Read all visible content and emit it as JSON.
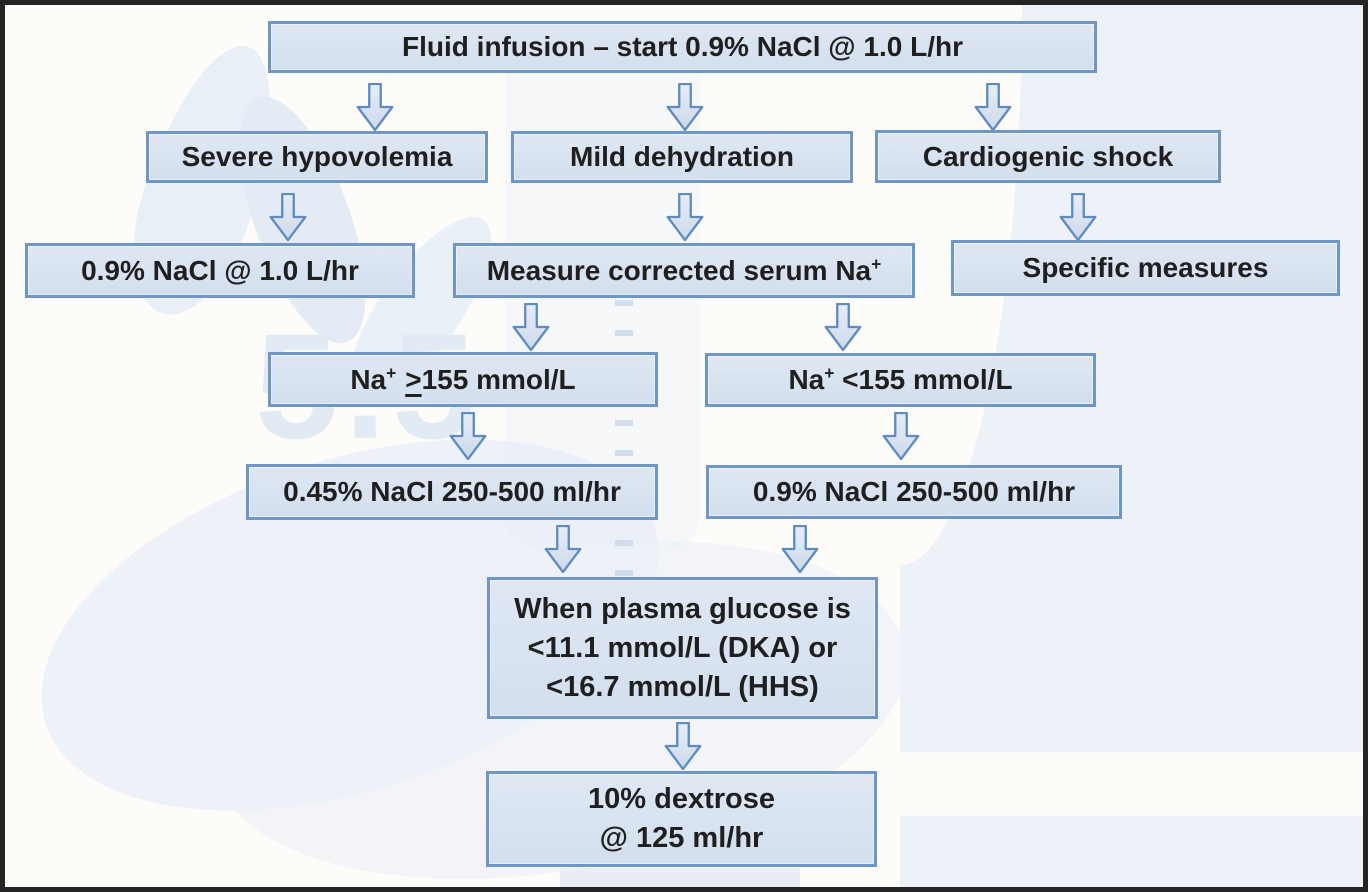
{
  "flowchart": {
    "boxes": {
      "fluid_infusion": {
        "label": "Fluid infusion – start 0.9% NaCl @ 1.0 L/hr"
      },
      "severe_hypovolemia": {
        "label": "Severe hypovolemia"
      },
      "mild_dehydration": {
        "label": "Mild dehydration"
      },
      "cardiogenic_shock": {
        "label": "Cardiogenic shock"
      },
      "nacl_09_full_rate": {
        "label": "0.9% NaCl @ 1.0 L/hr"
      },
      "measure_na": {
        "text": "Measure corrected serum Na",
        "sup": "+"
      },
      "specific_measures": {
        "label": "Specific measures"
      },
      "na_high": {
        "base": "Na",
        "sup": "+",
        "op": ">",
        "rest": "155 mmol/L"
      },
      "na_low": {
        "base": "Na",
        "sup": "+",
        "rest": " <155 mmol/L"
      },
      "nacl_045": {
        "label": "0.45% NaCl 250-500 ml/hr"
      },
      "nacl_09_250": {
        "label": "0.9% NaCl 250-500 ml/hr"
      },
      "glucose": {
        "lines": [
          "When plasma glucose is",
          "<11.1 mmol/L (DKA) or",
          "<16.7 mmol/L (HHS)"
        ]
      },
      "dextrose": {
        "lines": [
          "10% dextrose",
          "@ 125 ml/hr"
        ]
      }
    },
    "background": {
      "watermark_text": "5.5"
    },
    "colors": {
      "box_fill": "#d9e3f0",
      "box_border": "#6e96c6",
      "arrow_fill": "#d7e2f0",
      "arrow_border": "#5e8bc2",
      "text": "#1f1f1f",
      "frame": "#242424",
      "page_background": "#fdfcf8",
      "right_panel": "#edf1f8"
    }
  }
}
